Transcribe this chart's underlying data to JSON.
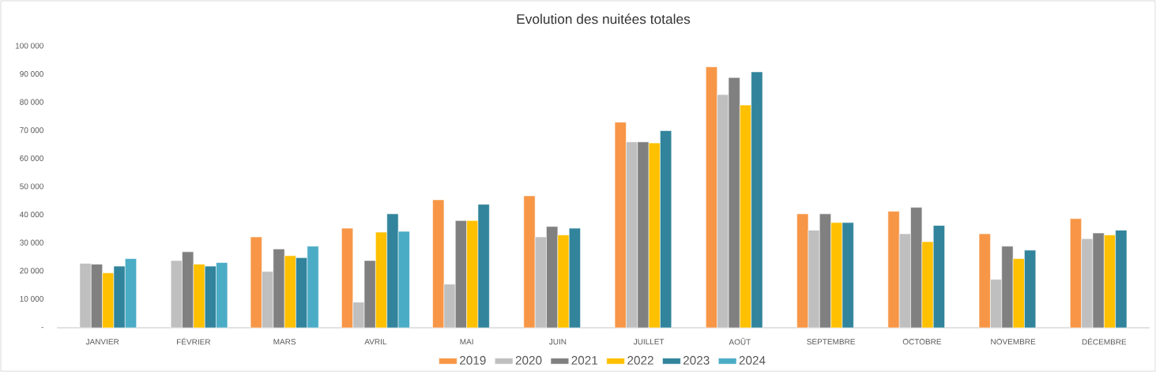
{
  "chart_data": {
    "type": "bar",
    "title": "Evolution des nuitées totales",
    "categories": [
      "JANVIER",
      "FÉVRIER",
      "MARS",
      "AVRIL",
      "MAI",
      "JUIN",
      "JUILLET",
      "AOÛT",
      "SEPTEMBRE",
      "OCTOBRE",
      "NOVEMBRE",
      "DÉCEMBRE"
    ],
    "series": [
      {
        "name": "2019",
        "color": "#f79646",
        "values": [
          null,
          null,
          32300,
          35400,
          45500,
          46900,
          73100,
          92800,
          40500,
          41400,
          33400,
          38800
        ]
      },
      {
        "name": "2020",
        "color": "#bfbfbf",
        "values": [
          22900,
          23900,
          20000,
          9100,
          15500,
          32300,
          66100,
          82900,
          34700,
          33400,
          17200,
          31700
        ]
      },
      {
        "name": "2021",
        "color": "#808080",
        "values": [
          22600,
          27000,
          28000,
          23900,
          38100,
          36000,
          66100,
          89000,
          40500,
          42800,
          29000,
          33700
        ]
      },
      {
        "name": "2022",
        "color": "#ffc000",
        "values": [
          19500,
          22600,
          25600,
          34000,
          38100,
          33000,
          65700,
          79200,
          37400,
          30600,
          24600,
          33000
        ]
      },
      {
        "name": "2023",
        "color": "#31849b",
        "values": [
          21900,
          21900,
          24900,
          40500,
          43900,
          35400,
          70100,
          91000,
          37400,
          36400,
          27600,
          34700
        ]
      },
      {
        "name": "2024",
        "color": "#4bacc6",
        "values": [
          24600,
          23200,
          29000,
          34300,
          null,
          null,
          null,
          null,
          null,
          null,
          null,
          null
        ]
      }
    ],
    "ylim": [
      0,
      100000
    ],
    "yticks": [
      {
        "value": 0,
        "label": "-"
      },
      {
        "value": 10000,
        "label": "10 000"
      },
      {
        "value": 20000,
        "label": "20 000"
      },
      {
        "value": 30000,
        "label": "30 000"
      },
      {
        "value": 40000,
        "label": "40 000"
      },
      {
        "value": 50000,
        "label": "50 000"
      },
      {
        "value": 60000,
        "label": "60 000"
      },
      {
        "value": 70000,
        "label": "70 000"
      },
      {
        "value": 80000,
        "label": "80 000"
      },
      {
        "value": 90000,
        "label": "90 000"
      },
      {
        "value": 100000,
        "label": "100 000"
      }
    ],
    "grid": false,
    "legend": "bottom"
  }
}
